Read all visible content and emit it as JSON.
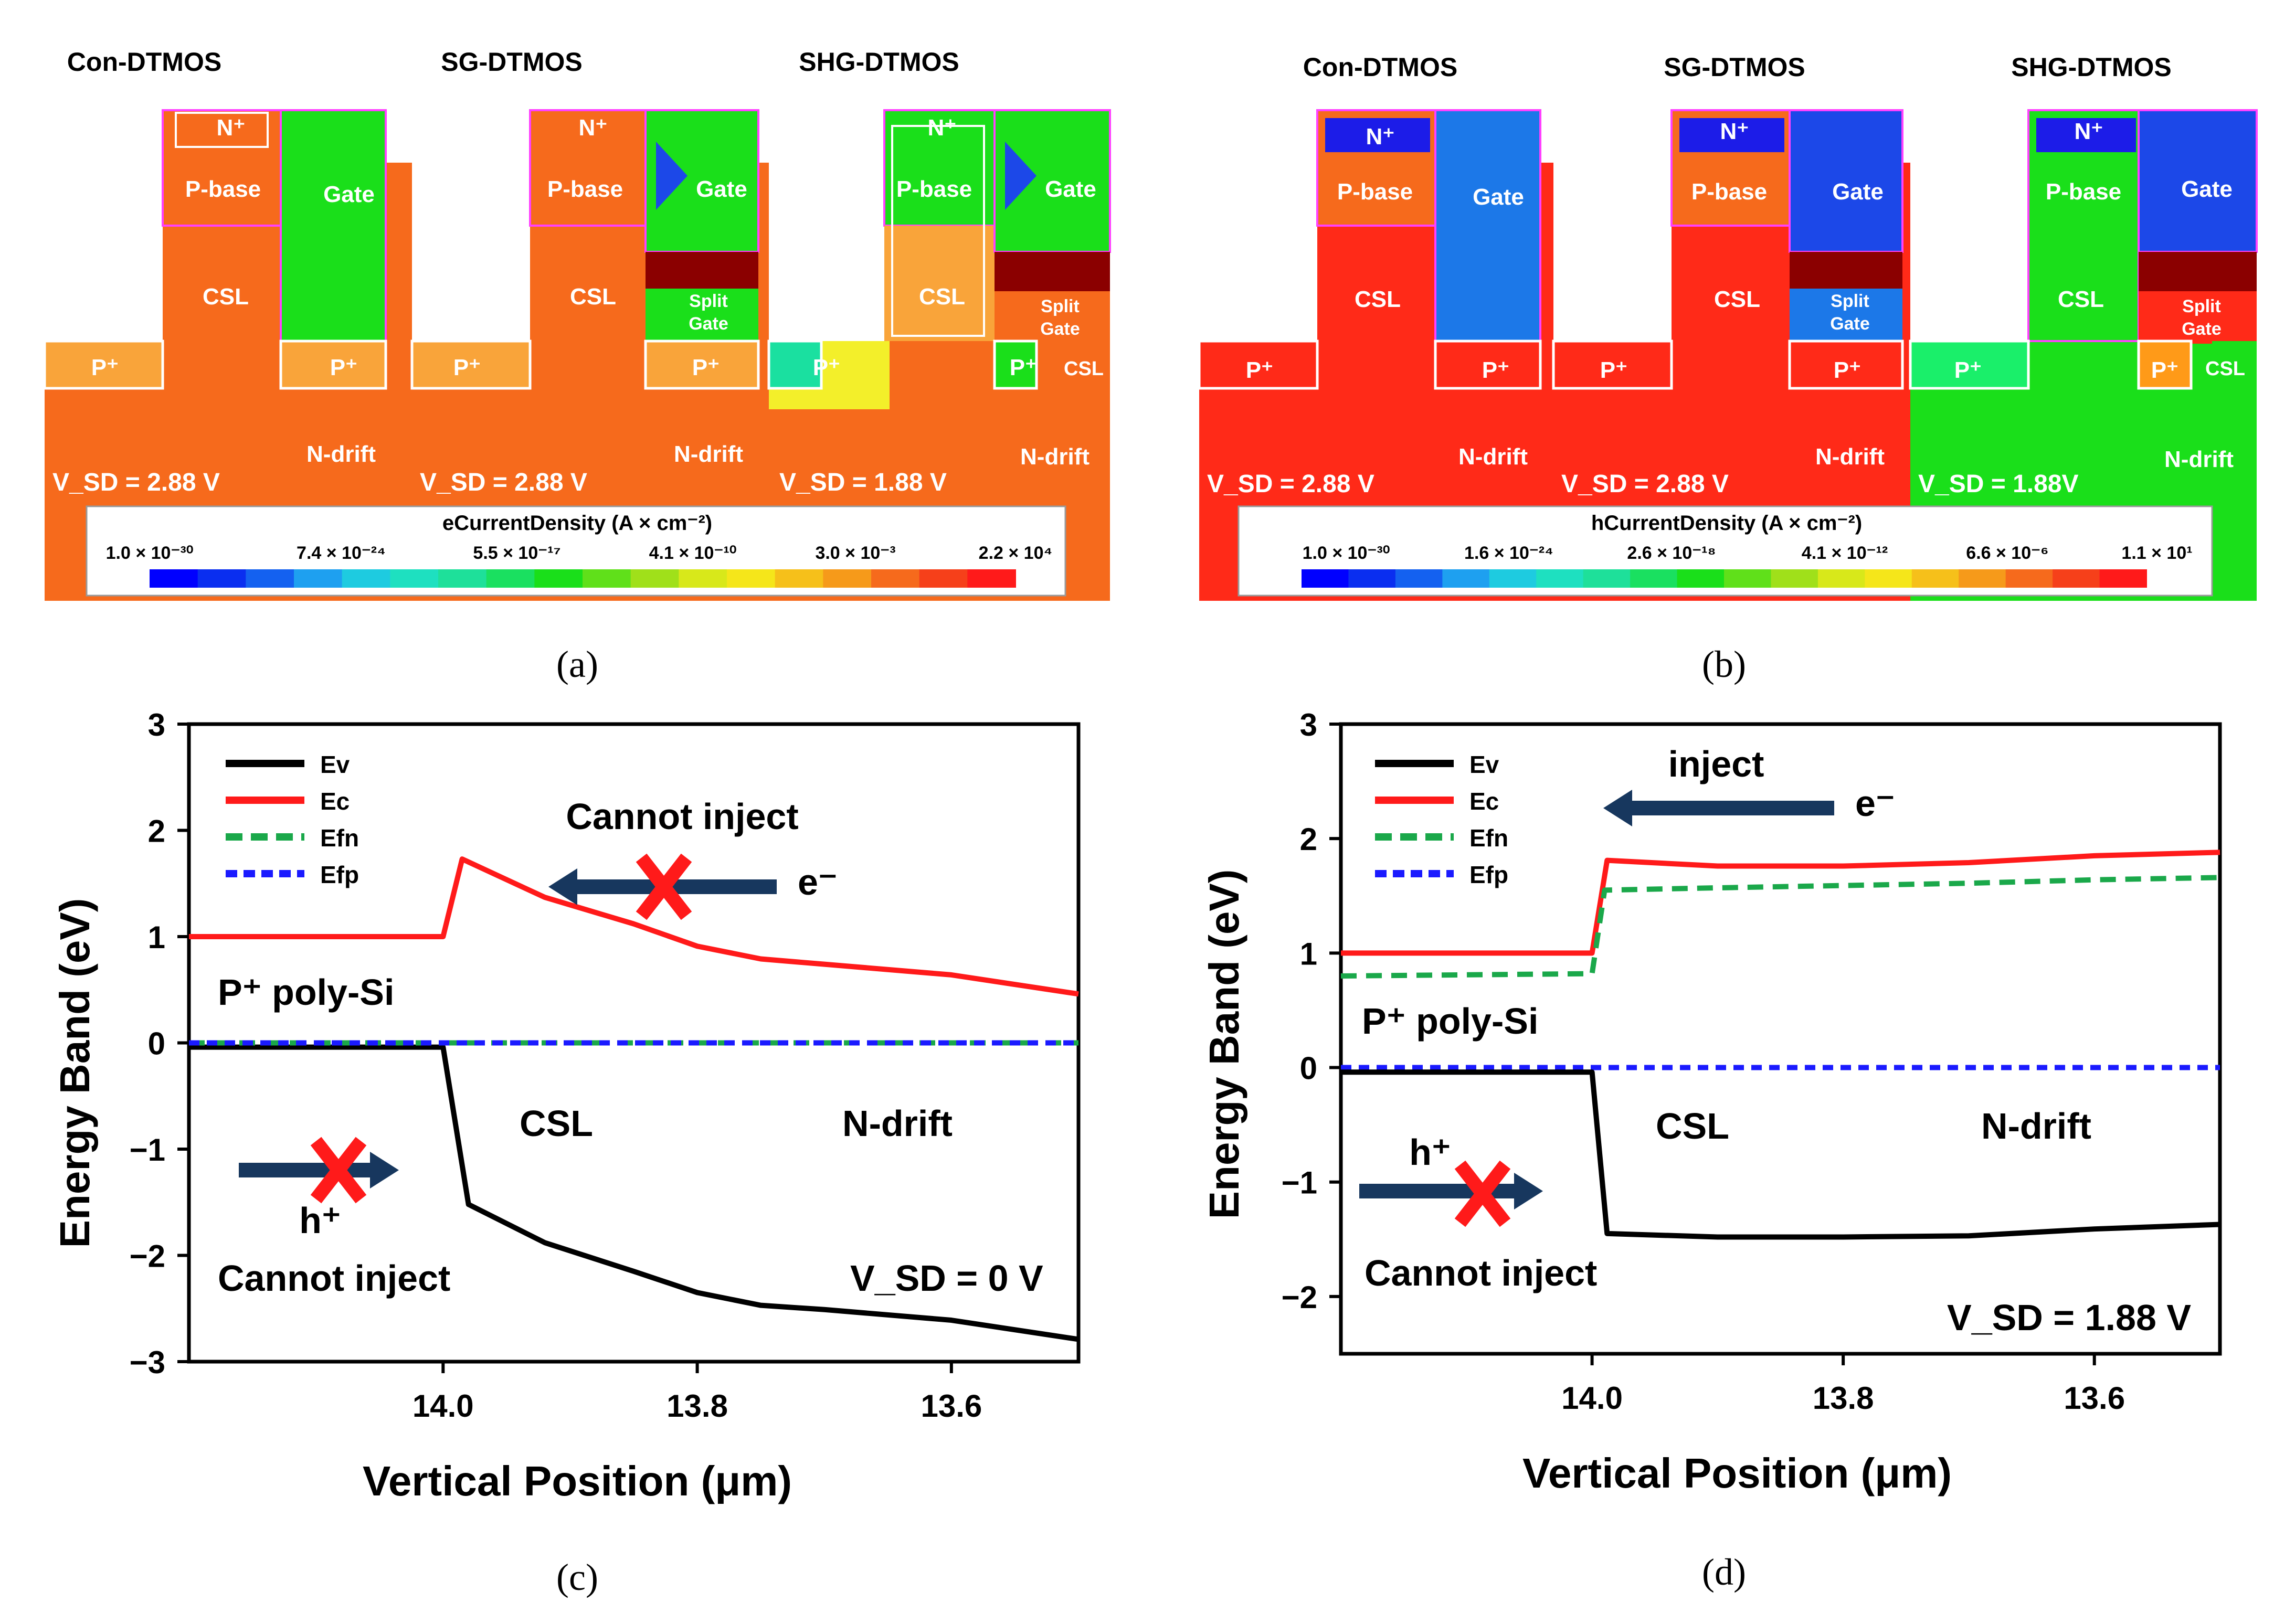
{
  "panels": {
    "a": {
      "caption": "(a)",
      "titles": [
        "Con-DTMOS",
        "SG-DTMOS",
        "SHG-DTMOS"
      ],
      "vsd": [
        "V_SD = 2.88 V",
        "V_SD = 2.88 V",
        "V_SD = 1.88 V"
      ],
      "regions": {
        "nplus": "N⁺",
        "pbase": "P-base",
        "gate": "Gate",
        "csl": "CSL",
        "pplus": "P⁺",
        "ndrift": "N-drift",
        "split": "Split",
        "splitgate": "Gate",
        "csl2": "CSL"
      },
      "colorbar": {
        "title": "eCurrentDensity (A × cm⁻²)",
        "ticks": [
          "1.0 × 10⁻³⁰",
          "7.4 × 10⁻²⁴",
          "5.5 × 10⁻¹⁷",
          "4.1 × 10⁻¹⁰",
          "3.0 × 10⁻³",
          "2.2 × 10⁴"
        ]
      }
    },
    "b": {
      "caption": "(b)",
      "titles": [
        "Con-DTMOS",
        "SG-DTMOS",
        "SHG-DTMOS"
      ],
      "vsd": [
        "V_SD = 2.88 V",
        "V_SD = 2.88 V",
        "V_SD = 1.88V"
      ],
      "regions": {
        "nplus": "N⁺",
        "pbase": "P-base",
        "gate": "Gate",
        "csl": "CSL",
        "pplus": "P⁺",
        "ndrift": "N-drift",
        "split": "Split",
        "splitgate": "Gate",
        "csl2": "CSL"
      },
      "colorbar": {
        "title": "hCurrentDensity (A × cm⁻²)",
        "ticks": [
          "1.0 × 10⁻³⁰",
          "1.6 × 10⁻²⁴",
          "2.6 × 10⁻¹⁸",
          "4.1 × 10⁻¹²",
          "6.6 × 10⁻⁶",
          "1.1 × 10¹"
        ]
      }
    }
  },
  "colors": {
    "Ev": "#000000",
    "Ec": "#ff1a1a",
    "Efn": "#1aa84a",
    "Efp": "#1a1aff",
    "arrow": "#17375e",
    "cross": "#ff1a1a",
    "orange": "#f66a1c",
    "green": "#1adf1a",
    "red": "#ff2a18",
    "blue": "#1c48e8",
    "darkred": "#8b0000",
    "magenta": "#ff40ff"
  },
  "chart_data": [
    {
      "type": "line",
      "panel_caption": "(c)",
      "xlabel": "Vertical Position (μm)",
      "ylabel": "Energy Band (eV)",
      "xlim": [
        14.2,
        13.5
      ],
      "ylim": [
        -3,
        3
      ],
      "xticks": [
        14.0,
        13.8,
        13.6
      ],
      "xtick_labels": [
        "14.0",
        "13.8",
        "13.6"
      ],
      "yticks": [
        -3,
        -2,
        -1,
        0,
        1,
        2,
        3
      ],
      "ytick_labels": [
        "−3",
        "−2",
        "−1",
        "0",
        "1",
        "2",
        "3"
      ],
      "legend": [
        "Ev",
        "Ec",
        "Efn",
        "Efp"
      ],
      "series": [
        {
          "key": "Ec",
          "name": "Ec",
          "x": [
            14.2,
            14.0,
            13.985,
            13.92,
            13.85,
            13.8,
            13.75,
            13.7,
            13.6,
            13.5
          ],
          "y": [
            1.0,
            1.0,
            1.73,
            1.37,
            1.12,
            0.91,
            0.79,
            0.74,
            0.64,
            0.46
          ]
        },
        {
          "key": "Ev",
          "name": "Ev",
          "x": [
            14.2,
            14.0,
            13.98,
            13.92,
            13.85,
            13.8,
            13.75,
            13.7,
            13.6,
            13.5
          ],
          "y": [
            -0.04,
            -0.04,
            -1.52,
            -1.88,
            -2.15,
            -2.35,
            -2.47,
            -2.51,
            -2.61,
            -2.79
          ]
        },
        {
          "key": "Efn",
          "name": "Efn",
          "x": [
            14.2,
            13.5
          ],
          "y": [
            0.0,
            0.0
          ]
        },
        {
          "key": "Efp",
          "name": "Efp",
          "x": [
            14.2,
            13.5
          ],
          "y": [
            0.0,
            0.0
          ]
        }
      ],
      "annotations": {
        "poly": "P⁺ poly-Si",
        "csl": "CSL",
        "ndrift": "N-drift",
        "cannot_top": "Cannot inject",
        "electron": "e⁻",
        "hole": "h⁺",
        "cannot_bottom": "Cannot inject",
        "vsd": "V_SD = 0 V"
      }
    },
    {
      "type": "line",
      "panel_caption": "(d)",
      "xlabel": "Vertical Position (μm)",
      "ylabel": "Energy Band (eV)",
      "xlim": [
        14.2,
        13.5
      ],
      "ylim": [
        -2.5,
        3
      ],
      "xticks": [
        14.0,
        13.8,
        13.6
      ],
      "xtick_labels": [
        "14.0",
        "13.8",
        "13.6"
      ],
      "yticks": [
        -2,
        -1,
        0,
        1,
        2,
        3
      ],
      "ytick_labels": [
        "−2",
        "−1",
        "0",
        "1",
        "2",
        "3"
      ],
      "legend": [
        "Ev",
        "Ec",
        "Efn",
        "Efp"
      ],
      "series": [
        {
          "key": "Ec",
          "name": "Ec",
          "x": [
            14.2,
            14.0,
            13.988,
            13.9,
            13.8,
            13.7,
            13.6,
            13.5
          ],
          "y": [
            1.0,
            1.0,
            1.81,
            1.76,
            1.76,
            1.79,
            1.85,
            1.88
          ]
        },
        {
          "key": "Efn",
          "name": "Efn",
          "x": [
            14.2,
            14.0,
            13.99,
            13.9,
            13.8,
            13.7,
            13.6,
            13.5
          ],
          "y": [
            0.8,
            0.82,
            1.55,
            1.57,
            1.59,
            1.61,
            1.64,
            1.66
          ]
        },
        {
          "key": "Efp",
          "name": "Efp",
          "x": [
            14.2,
            13.5
          ],
          "y": [
            0.0,
            0.0
          ]
        },
        {
          "key": "Ev",
          "name": "Ev",
          "x": [
            14.2,
            14.0,
            13.988,
            13.9,
            13.8,
            13.7,
            13.6,
            13.5
          ],
          "y": [
            -0.04,
            -0.04,
            -1.45,
            -1.48,
            -1.48,
            -1.47,
            -1.41,
            -1.37
          ]
        }
      ],
      "annotations": {
        "poly": "P⁺ poly-Si",
        "csl": "CSL",
        "ndrift": "N-drift",
        "inject": "inject",
        "electron": "e⁻",
        "hole": "h⁺",
        "cannot_bottom": "Cannot inject",
        "vsd": "V_SD = 1.88 V"
      }
    }
  ]
}
